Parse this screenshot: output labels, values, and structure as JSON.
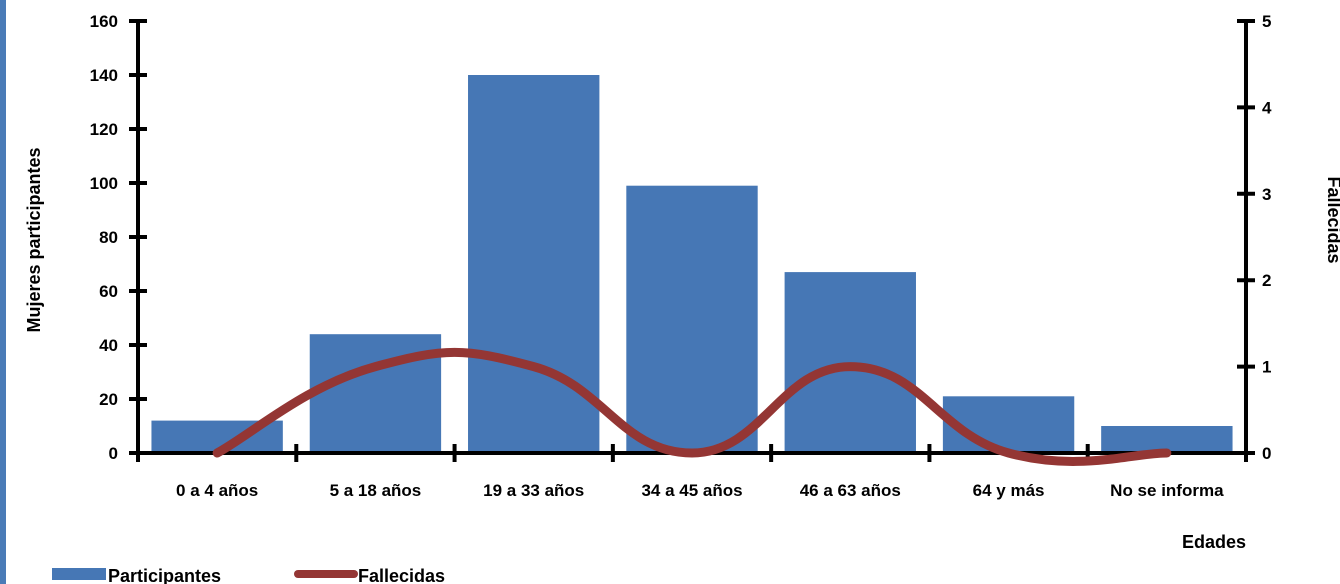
{
  "chart_data": {
    "type": "bar",
    "categories": [
      "0 a 4 años",
      "5 a 18 años",
      "19 a 33 años",
      "34 a 45 años",
      "46 a 63 años",
      "64 y más",
      "No se informa"
    ],
    "series": [
      {
        "name": "Participantes",
        "kind": "bar",
        "axis": "left",
        "color": "#4677b5",
        "values": [
          12,
          44,
          140,
          99,
          67,
          21,
          10
        ]
      },
      {
        "name": "Fallecidas",
        "kind": "line",
        "axis": "right",
        "color": "#943634",
        "smooth": true,
        "values": [
          0,
          1,
          1,
          0,
          1,
          0,
          0
        ]
      }
    ],
    "xlabel": "Edades",
    "ylabel": "Mujeres participantes",
    "y2label": "Fallecidas",
    "ylim": [
      0,
      160
    ],
    "yticks": [
      "0",
      "20",
      "40",
      "60",
      "80",
      "100",
      "120",
      "140",
      "160"
    ],
    "y2lim": [
      0,
      5
    ],
    "y2ticks": [
      "0",
      "1",
      "2",
      "3",
      "4",
      "5"
    ],
    "grid": false,
    "legend_position": "bottom-left"
  }
}
